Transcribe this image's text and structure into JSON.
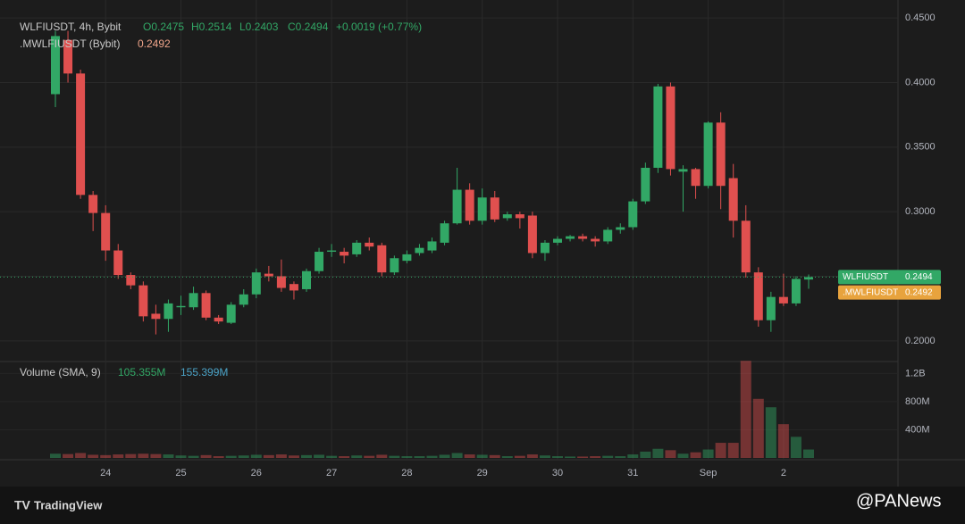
{
  "chart_data": [
    {
      "type": "candlestick",
      "legend": {
        "symbol": "WLFIUSDT, 4h, Bybit",
        "open": "O0.2475",
        "high": "H0.2514",
        "low": "L0.2403",
        "close": "C0.2494",
        "change": "+0.0019 (+0.77%)",
        "index_name": ".MWLFIUSDT (Bybit)",
        "index_value": "0.2492"
      },
      "categories": [
        null,
        null,
        null,
        null,
        "24",
        null,
        null,
        null,
        null,
        null,
        "25",
        null,
        null,
        null,
        null,
        null,
        "26",
        null,
        null,
        null,
        null,
        null,
        "27",
        null,
        null,
        null,
        null,
        null,
        "28",
        null,
        null,
        null,
        null,
        null,
        "29",
        null,
        null,
        null,
        null,
        null,
        "30",
        null,
        null,
        null,
        null,
        null,
        "31",
        null,
        null,
        null,
        null,
        null,
        "Sep",
        null,
        null,
        null,
        null,
        null,
        "2",
        null,
        null
      ],
      "open": [
        0.391,
        0.433,
        0.407,
        0.313,
        0.299,
        0.27,
        0.251,
        0.243,
        0.221,
        0.217,
        0.226,
        0.226,
        0.237,
        0.218,
        0.214,
        0.228,
        0.236,
        0.252,
        0.25,
        0.244,
        0.24,
        0.254,
        0.269,
        0.269,
        0.267,
        0.276,
        0.274,
        0.253,
        0.262,
        0.268,
        0.27,
        0.276,
        0.291,
        0.317,
        0.293,
        0.311,
        0.295,
        0.298,
        0.297,
        0.268,
        0.276,
        0.279,
        0.281,
        0.279,
        0.277,
        0.286,
        0.288,
        0.308,
        0.334,
        0.397,
        0.331,
        0.333,
        0.32,
        0.369,
        0.326,
        0.293,
        0.253,
        0.216,
        0.234,
        0.229,
        0.2475
      ],
      "high": [
        0.44,
        0.44,
        0.41,
        0.316,
        0.305,
        0.275,
        0.253,
        0.246,
        0.228,
        0.232,
        0.235,
        0.242,
        0.239,
        0.22,
        0.23,
        0.24,
        0.256,
        0.258,
        0.263,
        0.246,
        0.256,
        0.272,
        0.275,
        0.272,
        0.278,
        0.28,
        0.276,
        0.266,
        0.27,
        0.275,
        0.28,
        0.293,
        0.334,
        0.322,
        0.318,
        0.316,
        0.3,
        0.3,
        0.3,
        0.278,
        0.281,
        0.282,
        0.283,
        0.281,
        0.288,
        0.291,
        0.31,
        0.338,
        0.399,
        0.4,
        0.336,
        0.334,
        0.37,
        0.377,
        0.337,
        0.305,
        0.257,
        0.238,
        0.252,
        0.25,
        0.2514
      ],
      "low": [
        0.381,
        0.4,
        0.31,
        0.285,
        0.262,
        0.248,
        0.24,
        0.215,
        0.205,
        0.207,
        0.22,
        0.224,
        0.216,
        0.213,
        0.213,
        0.226,
        0.233,
        0.246,
        0.238,
        0.232,
        0.238,
        0.252,
        0.265,
        0.26,
        0.265,
        0.27,
        0.25,
        0.251,
        0.26,
        0.266,
        0.268,
        0.274,
        0.29,
        0.29,
        0.29,
        0.292,
        0.293,
        0.287,
        0.264,
        0.262,
        0.274,
        0.277,
        0.277,
        0.273,
        0.275,
        0.283,
        0.286,
        0.306,
        0.33,
        0.328,
        0.3,
        0.31,
        0.318,
        0.302,
        0.28,
        0.249,
        0.211,
        0.207,
        0.227,
        0.227,
        0.2403
      ],
      "close": [
        0.436,
        0.407,
        0.313,
        0.299,
        0.27,
        0.251,
        0.243,
        0.219,
        0.217,
        0.229,
        0.227,
        0.237,
        0.218,
        0.215,
        0.228,
        0.236,
        0.253,
        0.25,
        0.241,
        0.239,
        0.254,
        0.269,
        0.27,
        0.266,
        0.276,
        0.273,
        0.253,
        0.264,
        0.267,
        0.272,
        0.277,
        0.291,
        0.317,
        0.293,
        0.311,
        0.294,
        0.298,
        0.295,
        0.268,
        0.276,
        0.279,
        0.281,
        0.279,
        0.277,
        0.286,
        0.288,
        0.308,
        0.334,
        0.397,
        0.333,
        0.333,
        0.32,
        0.369,
        0.32,
        0.293,
        0.253,
        0.216,
        0.234,
        0.229,
        0.248,
        0.2494
      ],
      "up_color": "#32a866",
      "down_color": "#e0504f",
      "ylim": [
        0.184,
        0.457
      ],
      "yticks": [
        {
          "value": 0.2,
          "label": "0.2000"
        },
        {
          "value": 0.25,
          "label": "0.2500"
        },
        {
          "value": 0.3,
          "label": "0.3000"
        },
        {
          "value": 0.35,
          "label": "0.3500"
        },
        {
          "value": 0.4,
          "label": "0.4000"
        },
        {
          "value": 0.45,
          "label": "0.4500"
        }
      ],
      "grid": true,
      "price_tags": [
        {
          "label": "WLFIUSDT",
          "value": 0.2494,
          "color": "#32a866"
        },
        {
          "label": ".MWLFIUSDT",
          "value": 0.2492,
          "color": "#e8a33d"
        }
      ]
    },
    {
      "type": "volume",
      "legend": {
        "title": "Volume (SMA, 9)",
        "values": [
          "105.355M",
          "155.399M"
        ]
      },
      "values": [
        60000000,
        55000000,
        70000000,
        45000000,
        40000000,
        50000000,
        55000000,
        60000000,
        55000000,
        50000000,
        35000000,
        30000000,
        40000000,
        25000000,
        30000000,
        35000000,
        45000000,
        40000000,
        50000000,
        35000000,
        40000000,
        45000000,
        30000000,
        25000000,
        35000000,
        30000000,
        45000000,
        30000000,
        25000000,
        25000000,
        30000000,
        45000000,
        70000000,
        50000000,
        45000000,
        40000000,
        25000000,
        30000000,
        50000000,
        35000000,
        25000000,
        20000000,
        20000000,
        25000000,
        30000000,
        25000000,
        50000000,
        90000000,
        130000000,
        110000000,
        60000000,
        80000000,
        120000000,
        215000000,
        215000000,
        1380000000,
        840000000,
        720000000,
        480000000,
        300000000,
        120000000
      ],
      "up_color": "rgba(50,168,102,0.45)",
      "down_color": "rgba(224,80,79,0.45)",
      "ylim": [
        0,
        1370000000
      ],
      "yticks": [
        {
          "value": 400000000,
          "label": "400M"
        },
        {
          "value": 800000000,
          "label": "800M"
        },
        {
          "value": 1200000000,
          "label": "1.2B"
        }
      ]
    }
  ],
  "footer": {
    "brand": "TradingView",
    "watermark": "@PANews"
  }
}
